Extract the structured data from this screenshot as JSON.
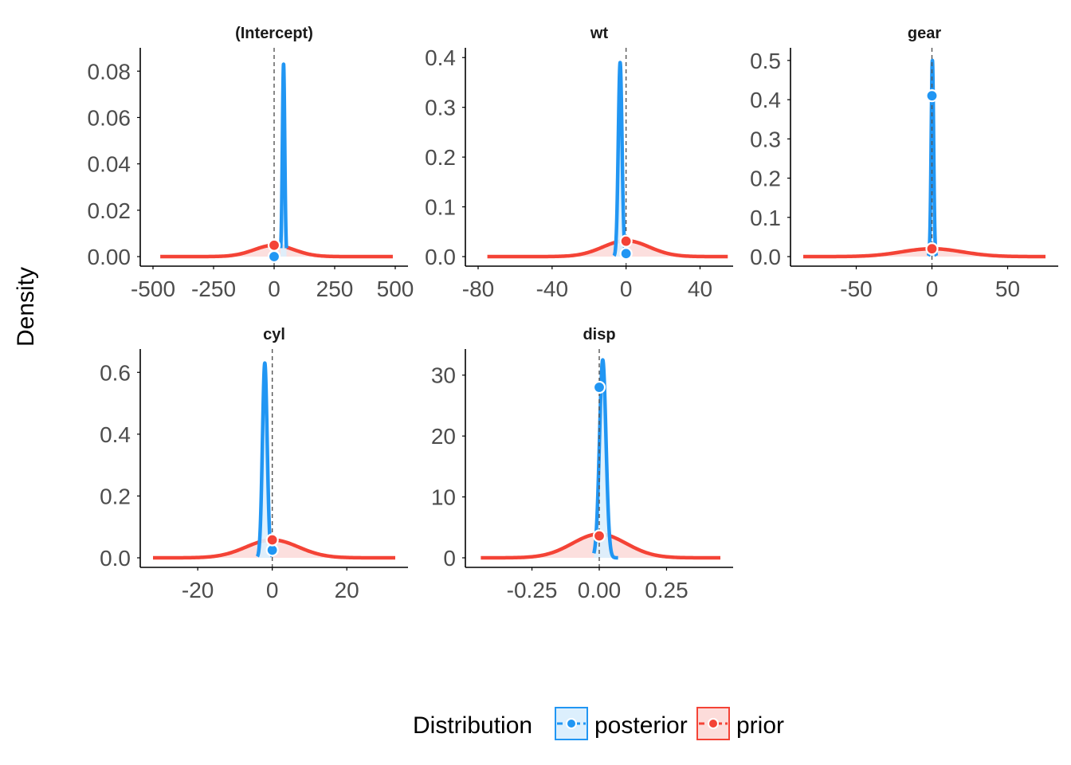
{
  "ylabel": "Density",
  "legend": {
    "title": "Distribution",
    "entries": [
      {
        "label": "posterior",
        "color": "#2196F3",
        "fill": "#DCEFFD"
      },
      {
        "label": "prior",
        "color": "#F44336",
        "fill": "#FCDCDA"
      }
    ]
  },
  "colors": {
    "posterior": "#2196F3",
    "posterior_fill": "#DCEFFD",
    "prior": "#F44336",
    "prior_fill": "#FCDCDA",
    "reference_line": "#555555",
    "axis": "#000000"
  },
  "chart_data": [
    {
      "type": "area",
      "title": "(Intercept)",
      "xlim": [
        -500,
        500
      ],
      "ylim": [
        0,
        0.088
      ],
      "xticks": [
        -500,
        -250,
        0,
        250,
        500
      ],
      "xtick_labels": [
        "-500",
        "-250",
        "0",
        "250",
        "500"
      ],
      "yticks": [
        0,
        0.02,
        0.04,
        0.06,
        0.08
      ],
      "ytick_labels": [
        "0.00",
        "0.02",
        "0.04",
        "0.06",
        "0.08"
      ],
      "reference_x": 0,
      "posterior": {
        "center": 39,
        "sd": 4.8,
        "peak": 0.083,
        "range": [
          27,
          51
        ],
        "point": [
          0,
          0.0
        ]
      },
      "prior": {
        "center": 0,
        "sd": 82,
        "peak": 0.0049,
        "range": [
          -470,
          490
        ],
        "point": [
          0,
          0.0049
        ]
      }
    },
    {
      "type": "area",
      "title": "wt",
      "xlim": [
        -80,
        51
      ],
      "ylim": [
        0,
        0.41
      ],
      "xticks": [
        -80,
        -40,
        0,
        40
      ],
      "xtick_labels": [
        "-80",
        "-40",
        "0",
        "40"
      ],
      "yticks": [
        0,
        0.1,
        0.2,
        0.3,
        0.4
      ],
      "ytick_labels": [
        "0.0",
        "0.1",
        "0.2",
        "0.3",
        "0.4"
      ],
      "reference_x": 0,
      "posterior": {
        "center": -3.2,
        "sd": 1.0,
        "peak": 0.39,
        "range": [
          -6.5,
          -0.5
        ],
        "point": [
          0,
          0.006
        ]
      },
      "prior": {
        "center": 0,
        "sd": 12.5,
        "peak": 0.032,
        "range": [
          -75,
          55
        ],
        "point": [
          0,
          0.031
        ]
      }
    },
    {
      "type": "area",
      "title": "gear",
      "xlim": [
        -85,
        75
      ],
      "ylim": [
        0,
        0.52
      ],
      "xticks": [
        -50,
        0,
        50
      ],
      "xtick_labels": [
        "-50",
        "0",
        "50"
      ],
      "yticks": [
        0,
        0.1,
        0.2,
        0.3,
        0.4,
        0.5
      ],
      "ytick_labels": [
        "0.0",
        "0.1",
        "0.2",
        "0.3",
        "0.4",
        "0.5"
      ],
      "reference_x": 0,
      "posterior": {
        "center": 0.3,
        "sd": 0.8,
        "peak": 0.5,
        "range": [
          -2.4,
          3.0
        ],
        "point": [
          0,
          0.41
        ]
      },
      "prior": {
        "center": 0,
        "sd": 20,
        "peak": 0.02,
        "range": [
          -85,
          75
        ],
        "point": [
          0,
          0.02
        ]
      }
    },
    {
      "type": "area",
      "title": "cyl",
      "xlim": [
        -32,
        33
      ],
      "ylim": [
        0,
        0.66
      ],
      "xticks": [
        -20,
        0,
        20
      ],
      "xtick_labels": [
        "-20",
        "0",
        "20"
      ],
      "yticks": [
        0,
        0.2,
        0.4,
        0.6
      ],
      "ytick_labels": [
        "0.0",
        "0.2",
        "0.4",
        "0.6"
      ],
      "reference_x": 0,
      "posterior": {
        "center": -2.0,
        "sd": 0.63,
        "peak": 0.63,
        "range": [
          -4.0,
          0.0
        ],
        "point": [
          0,
          0.025
        ]
      },
      "prior": {
        "center": 0,
        "sd": 7,
        "peak": 0.058,
        "range": [
          -32,
          33
        ],
        "point": [
          0,
          0.058
        ]
      }
    },
    {
      "type": "area",
      "title": "disp",
      "xlim": [
        -0.45,
        0.45
      ],
      "ylim": [
        0,
        33.5
      ],
      "xticks": [
        -0.25,
        0,
        0.25
      ],
      "xtick_labels": [
        "-0.25",
        "0.00",
        "0.25"
      ],
      "yticks": [
        0,
        10,
        20,
        30
      ],
      "ytick_labels": [
        "0",
        "10",
        "20",
        "30"
      ],
      "reference_x": 0,
      "posterior": {
        "center": 0.013,
        "sd": 0.012,
        "peak": 32.5,
        "range": [
          -0.02,
          0.07
        ],
        "point": [
          0,
          28
        ]
      },
      "prior": {
        "center": 0,
        "sd": 0.1,
        "peak": 3.9,
        "range": [
          -0.44,
          0.45
        ],
        "point": [
          0,
          3.6
        ]
      }
    }
  ]
}
